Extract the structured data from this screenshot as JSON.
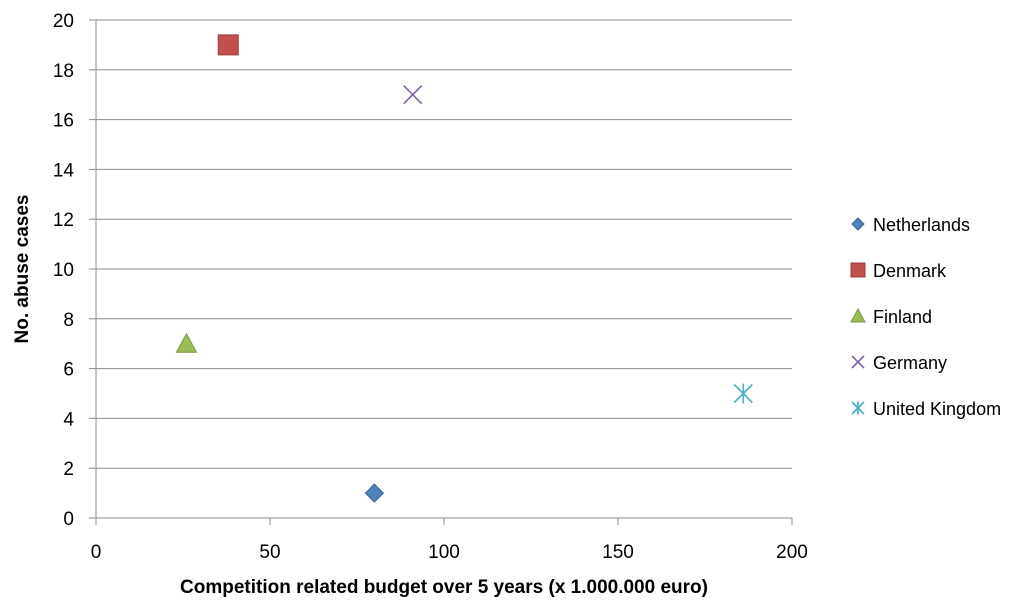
{
  "chart_data": {
    "type": "scatter",
    "title": "",
    "xlabel": "Competition related budget over 5 years (x 1.000.000 euro)",
    "ylabel": "No. abuse cases",
    "xlim": [
      0,
      200
    ],
    "ylim": [
      0,
      20
    ],
    "x_ticks": [
      0,
      50,
      100,
      150,
      200
    ],
    "y_ticks": [
      0,
      2,
      4,
      6,
      8,
      10,
      12,
      14,
      16,
      18,
      20
    ],
    "grid": "horizontal",
    "legend_position": "right",
    "series": [
      {
        "name": "Netherlands",
        "marker": "diamond",
        "color": "#4f81bd",
        "points": [
          {
            "x": 80,
            "y": 1
          }
        ]
      },
      {
        "name": "Denmark",
        "marker": "square",
        "color": "#c0504d",
        "points": [
          {
            "x": 38,
            "y": 19
          }
        ]
      },
      {
        "name": "Finland",
        "marker": "triangle",
        "color": "#9bbb59",
        "points": [
          {
            "x": 26,
            "y": 7
          }
        ]
      },
      {
        "name": "Germany",
        "marker": "x",
        "color": "#8064a2",
        "points": [
          {
            "x": 91,
            "y": 17
          }
        ]
      },
      {
        "name": "United Kingdom",
        "marker": "asterisk",
        "color": "#4bacc6",
        "points": [
          {
            "x": 186,
            "y": 5
          }
        ]
      }
    ]
  }
}
